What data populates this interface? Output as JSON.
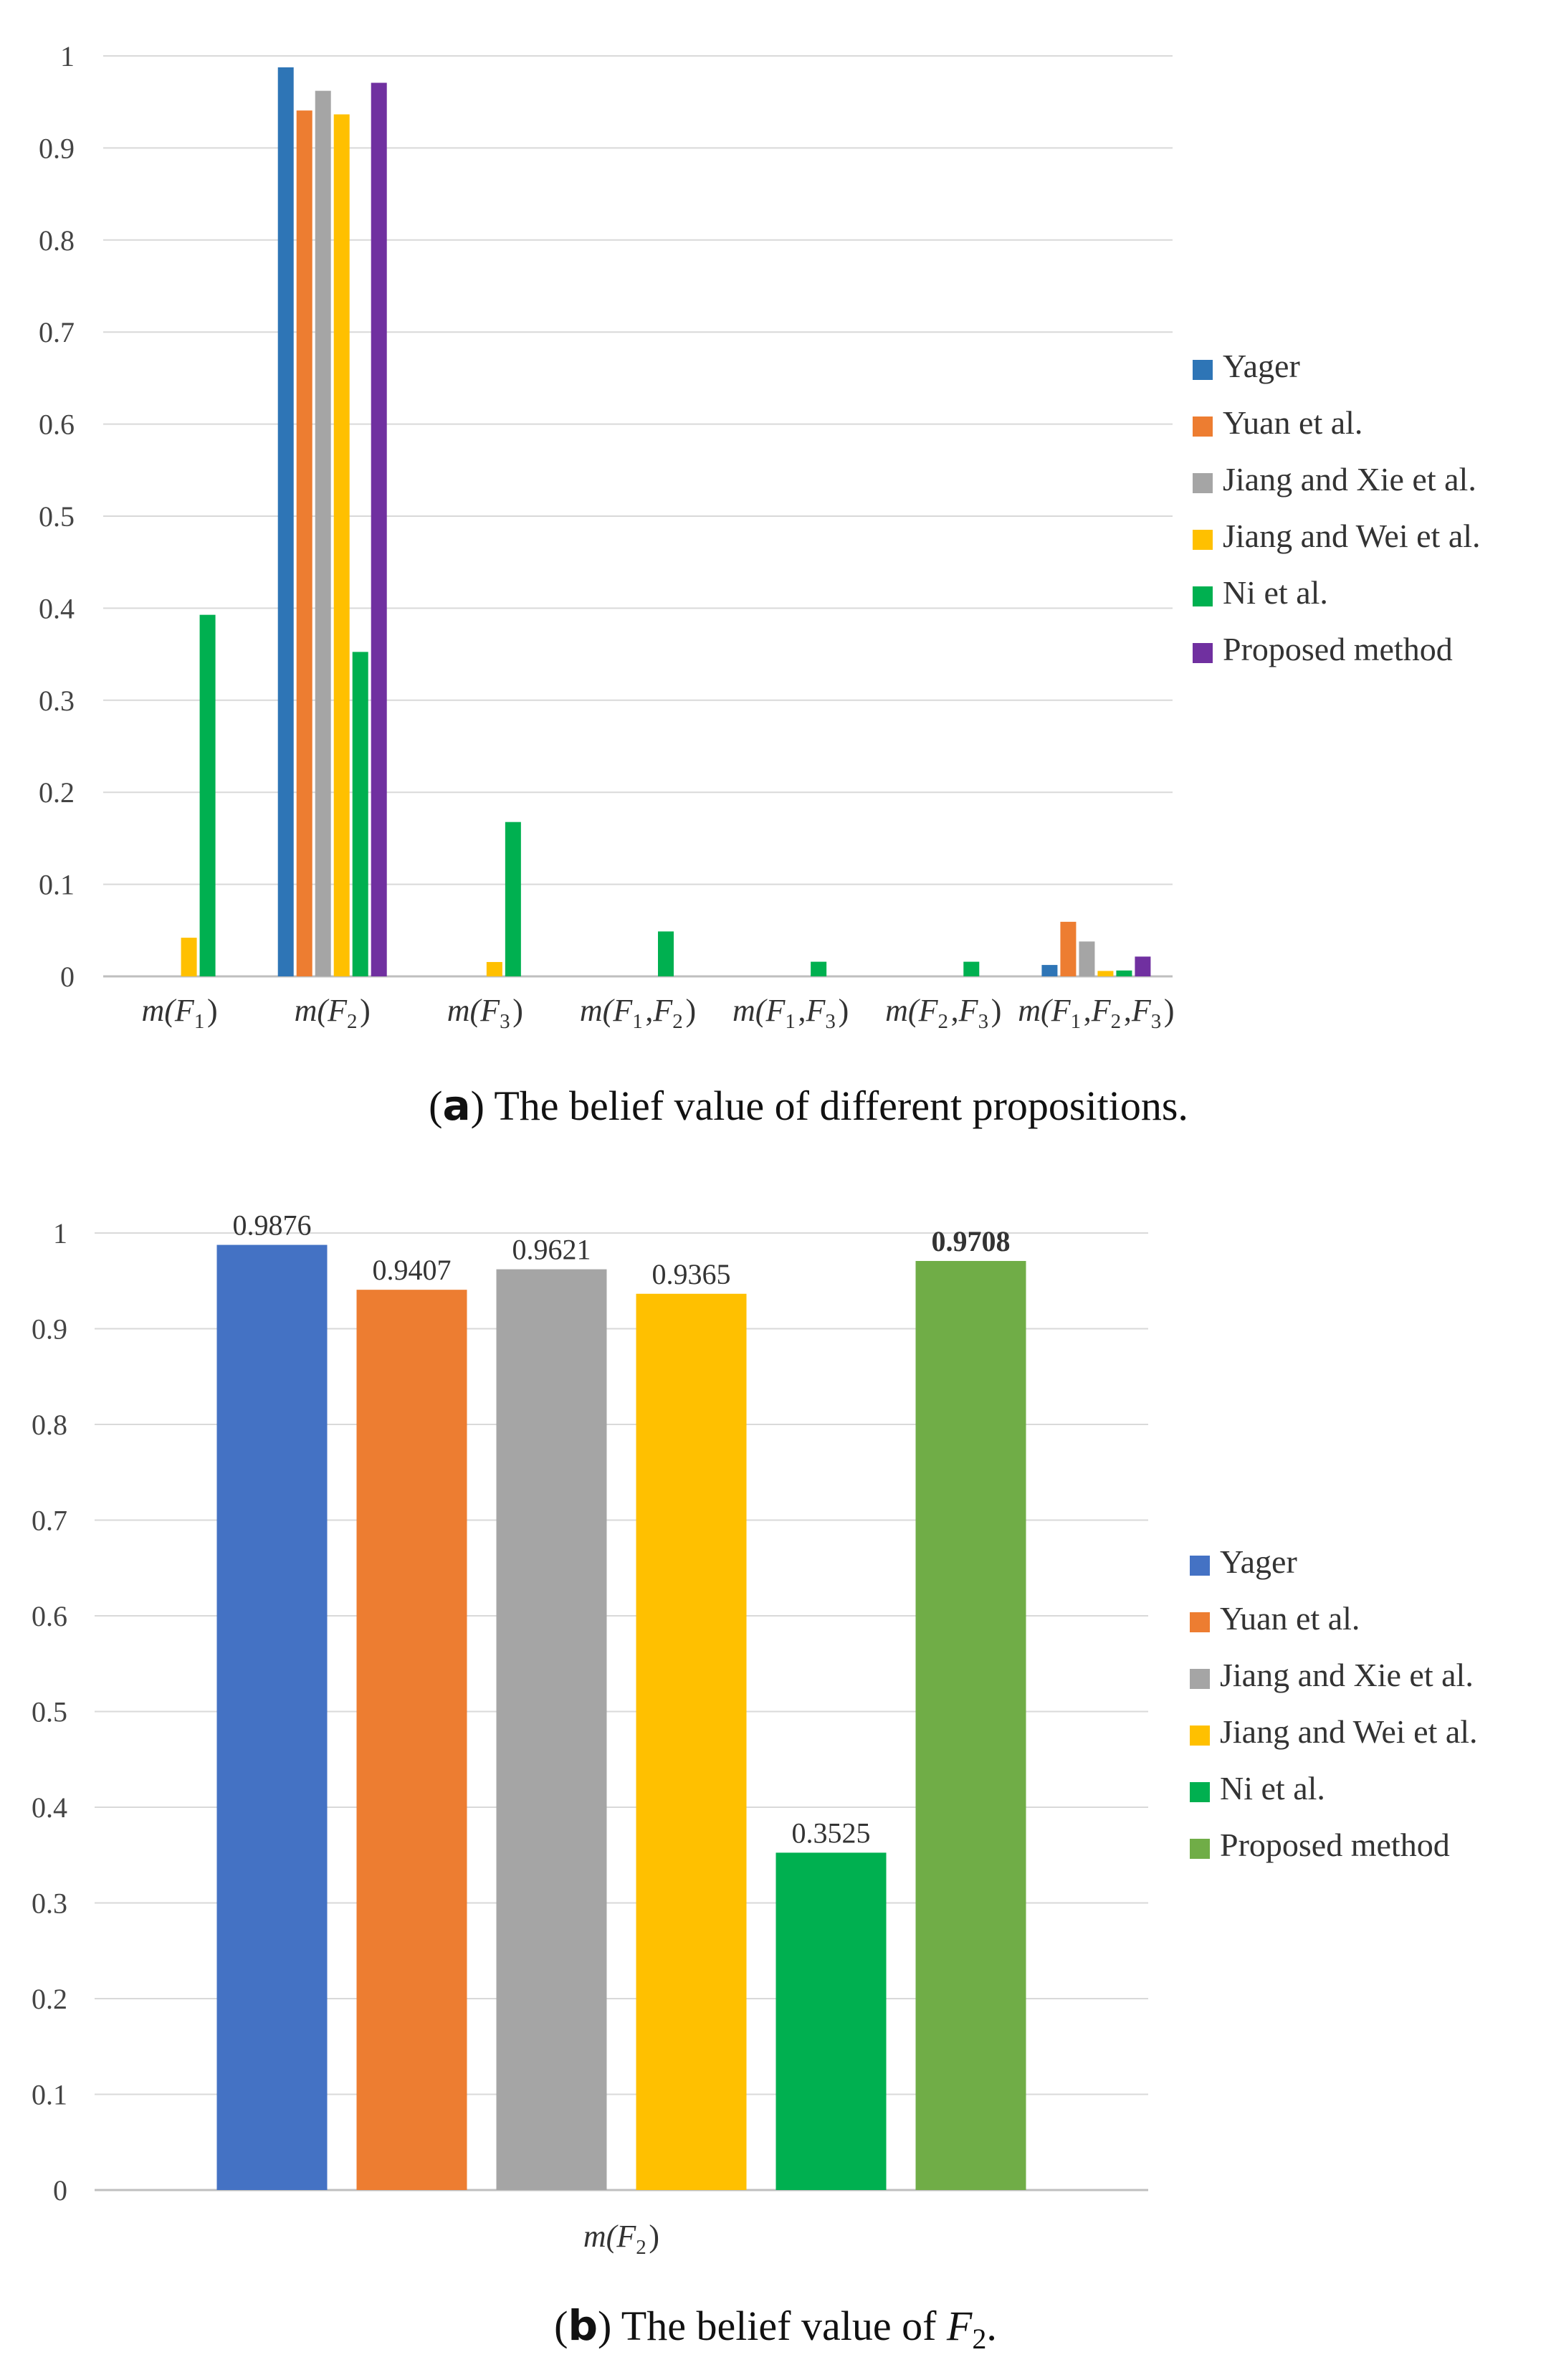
{
  "chart_data": [
    {
      "type": "bar",
      "panel": "a",
      "caption": {
        "tag": "a",
        "text": "The belief value of different propositions."
      },
      "categories": [
        {
          "prefix": "m(",
          "terms": [
            {
              "base": "F",
              "sub": "1"
            }
          ],
          "suffix": ")"
        },
        {
          "prefix": "m(",
          "terms": [
            {
              "base": "F",
              "sub": "2"
            }
          ],
          "suffix": ")"
        },
        {
          "prefix": "m(",
          "terms": [
            {
              "base": "F",
              "sub": "3"
            }
          ],
          "suffix": ")"
        },
        {
          "prefix": "m(",
          "terms": [
            {
              "base": "F",
              "sub": "1"
            },
            {
              "base": "F",
              "sub": "2"
            }
          ],
          "suffix": ")"
        },
        {
          "prefix": "m(",
          "terms": [
            {
              "base": "F",
              "sub": "1"
            },
            {
              "base": "F",
              "sub": "3"
            }
          ],
          "suffix": ")"
        },
        {
          "prefix": "m(",
          "terms": [
            {
              "base": "F",
              "sub": "2"
            },
            {
              "base": "F",
              "sub": "3"
            }
          ],
          "suffix": ")"
        },
        {
          "prefix": "m(",
          "terms": [
            {
              "base": "F",
              "sub": "1"
            },
            {
              "base": "F",
              "sub": "2"
            },
            {
              "base": "F",
              "sub": "3"
            }
          ],
          "suffix": ")"
        }
      ],
      "series": [
        {
          "name": "Yager",
          "color": "#2E75B6",
          "values": [
            0,
            0.9876,
            0,
            0,
            0,
            0,
            0.0124
          ]
        },
        {
          "name": "Yuan et al.",
          "color": "#ED7D31",
          "values": [
            0,
            0.9407,
            0,
            0,
            0,
            0,
            0.0593
          ]
        },
        {
          "name": "Jiang and Xie et al.",
          "color": "#A5A5A5",
          "values": [
            0,
            0.9621,
            0,
            0,
            0,
            0,
            0.0379
          ]
        },
        {
          "name": "Jiang and Wei et al.",
          "color": "#FFC000",
          "values": [
            0.042,
            0.9365,
            0.0156,
            0,
            0,
            0,
            0.0059
          ]
        },
        {
          "name": "Ni et al.",
          "color": "#00B050",
          "values": [
            0.3928,
            0.3525,
            0.1677,
            0.0488,
            0.0159,
            0.0159,
            0.0064
          ]
        },
        {
          "name": "Proposed method",
          "color": "#7030A0",
          "values": [
            0,
            0.9708,
            0,
            0,
            0,
            0,
            0.0215
          ]
        }
      ],
      "yticks": [
        "0",
        "0.1",
        "0.2",
        "0.3",
        "0.4",
        "0.5",
        "0.6",
        "0.7",
        "0.8",
        "0.9",
        "1"
      ],
      "ylim": [
        0,
        1
      ],
      "grid": true,
      "legend": "right"
    },
    {
      "type": "bar",
      "panel": "b",
      "caption": {
        "tag": "b",
        "text": "The belief value of",
        "math_base": "F",
        "math_sub": "2",
        "end": "."
      },
      "categories": [
        {
          "prefix": "m(",
          "terms": [
            {
              "base": "F",
              "sub": "2"
            }
          ],
          "suffix": ")"
        }
      ],
      "series": [
        {
          "name": "Yager",
          "color": "#4472C4",
          "values": [
            0.9876
          ],
          "label": "0.9876",
          "bold": false
        },
        {
          "name": "Yuan et al.",
          "color": "#ED7D31",
          "values": [
            0.9407
          ],
          "label": "0.9407",
          "bold": false
        },
        {
          "name": "Jiang and Xie et al.",
          "color": "#A5A5A5",
          "values": [
            0.9621
          ],
          "label": "0.9621",
          "bold": false
        },
        {
          "name": "Jiang and Wei et al.",
          "color": "#FFC000",
          "values": [
            0.9365
          ],
          "label": "0.9365",
          "bold": false
        },
        {
          "name": "Ni et al.",
          "color": "#00B050",
          "values": [
            0.3525
          ],
          "label": "0.3525",
          "bold": false
        },
        {
          "name": "Proposed method",
          "color": "#70AD47",
          "values": [
            0.9708
          ],
          "label": "0.9708",
          "bold": true
        }
      ],
      "yticks": [
        "0",
        "0.1",
        "0.2",
        "0.3",
        "0.4",
        "0.5",
        "0.6",
        "0.7",
        "0.8",
        "0.9",
        "1"
      ],
      "ylim": [
        0,
        1
      ],
      "grid": true,
      "legend": "right"
    }
  ]
}
